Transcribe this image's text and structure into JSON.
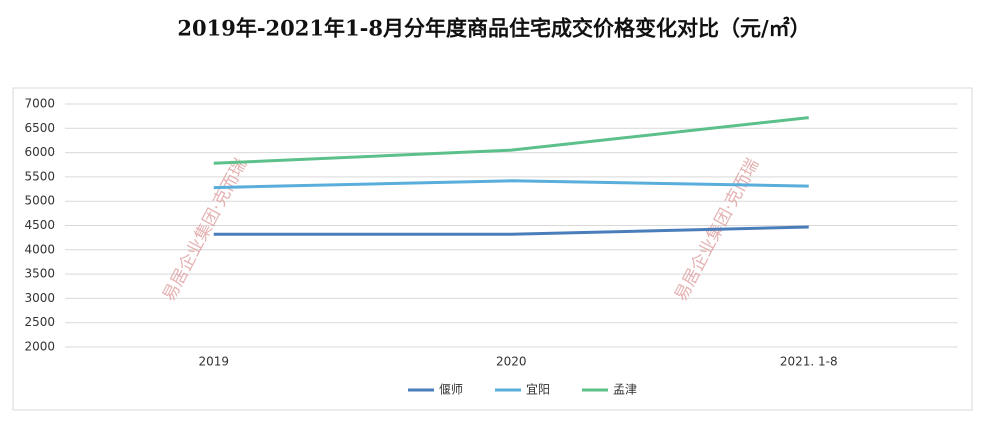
{
  "chart_data": {
    "type": "line",
    "title": "2019年-2021年1-8月分年度商品住宅成交价格变化对比（元/㎡）",
    "categories": [
      "2019",
      "2020",
      "2021. 1-8"
    ],
    "series": [
      {
        "name": "偃师",
        "color": "#4a7ebb",
        "values": [
          4320,
          4320,
          4470
        ]
      },
      {
        "name": "宜阳",
        "color": "#5aaedc",
        "values": [
          5280,
          5420,
          5310
        ]
      },
      {
        "name": "孟津",
        "color": "#5cc08a",
        "values": [
          5780,
          6050,
          6720
        ]
      }
    ],
    "ylim": [
      2000,
      7000
    ],
    "yticks": [
      2000,
      2500,
      3000,
      3500,
      4000,
      4500,
      5000,
      5500,
      6000,
      6500,
      7000
    ],
    "grid": true,
    "legend": "bottom",
    "watermark": "易居企业集团·克而瑞"
  }
}
